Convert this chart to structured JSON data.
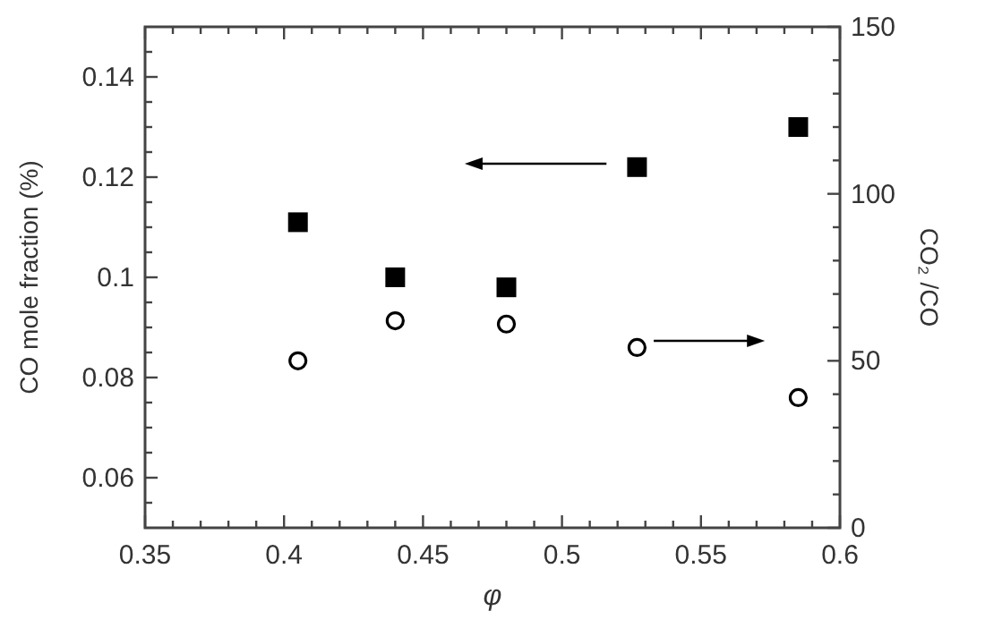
{
  "chart_data": {
    "type": "scatter",
    "xlabel": "φ",
    "ylabel": "CO mole fraction (%)",
    "y2label": "CO₂ /CO",
    "x": [
      0.405,
      0.44,
      0.48,
      0.527,
      0.585
    ],
    "series": [
      {
        "color": "#000000",
        "marker": "square",
        "values": [
          0.111,
          0.1,
          0.098,
          0.122,
          0.13
        ]
      },
      {
        "color": "#000000",
        "marker": "circle",
        "axis": "y2",
        "values": [
          50,
          62,
          61,
          54,
          39
        ]
      }
    ],
    "xlim": [
      0.35,
      0.6
    ],
    "xticks": [
      0.35,
      {
        "value": 0.36,
        "label": null
      },
      {
        "value": 0.37,
        "label": null
      },
      {
        "value": 0.38,
        "label": null
      },
      {
        "value": 0.39,
        "label": null
      },
      0.4,
      {
        "value": 0.41,
        "label": null
      },
      {
        "value": 0.42,
        "label": null
      },
      {
        "value": 0.43,
        "label": null
      },
      {
        "value": 0.44,
        "label": null
      },
      0.45,
      {
        "value": 0.46,
        "label": null
      },
      {
        "value": 0.47,
        "label": null
      },
      {
        "value": 0.48,
        "label": null
      },
      {
        "value": 0.49,
        "label": null
      },
      0.5,
      {
        "value": 0.51,
        "label": null
      },
      {
        "value": 0.52,
        "label": null
      },
      {
        "value": 0.53,
        "label": null
      },
      {
        "value": 0.54,
        "label": null
      },
      0.55,
      {
        "value": 0.56,
        "label": null
      },
      {
        "value": 0.57,
        "label": null
      },
      {
        "value": 0.58,
        "label": null
      },
      {
        "value": 0.59,
        "label": null
      },
      0.6
    ],
    "ylim": [
      0.05,
      0.15
    ],
    "yticks": [
      {
        "value": 0.055,
        "label": null
      },
      0.06,
      {
        "value": 0.065,
        "label": null
      },
      {
        "value": 0.07,
        "label": null
      },
      {
        "value": 0.075,
        "label": null
      },
      0.08,
      {
        "value": 0.085,
        "label": null
      },
      {
        "value": 0.09,
        "label": null
      },
      {
        "value": 0.095,
        "label": null
      },
      0.1,
      {
        "value": 0.105,
        "label": null
      },
      {
        "value": 0.11,
        "label": null
      },
      {
        "value": 0.115,
        "label": null
      },
      0.12,
      {
        "value": 0.125,
        "label": null
      },
      {
        "value": 0.13,
        "label": null
      },
      {
        "value": 0.135,
        "label": null
      },
      0.14,
      {
        "value": 0.145,
        "label": null
      }
    ],
    "y2lim": [
      0,
      150
    ],
    "y2ticks": [
      0,
      {
        "value": 10,
        "label": null
      },
      {
        "value": 20,
        "label": null
      },
      {
        "value": 30,
        "label": null
      },
      {
        "value": 40,
        "label": null
      },
      50,
      {
        "value": 60,
        "label": null
      },
      {
        "value": 70,
        "label": null
      },
      {
        "value": 80,
        "label": null
      },
      {
        "value": 90,
        "label": null
      },
      100,
      {
        "value": 110,
        "label": null
      },
      {
        "value": 120,
        "label": null
      },
      {
        "value": 130,
        "label": null
      },
      {
        "value": 140,
        "label": null
      },
      150
    ],
    "grid": false
  }
}
